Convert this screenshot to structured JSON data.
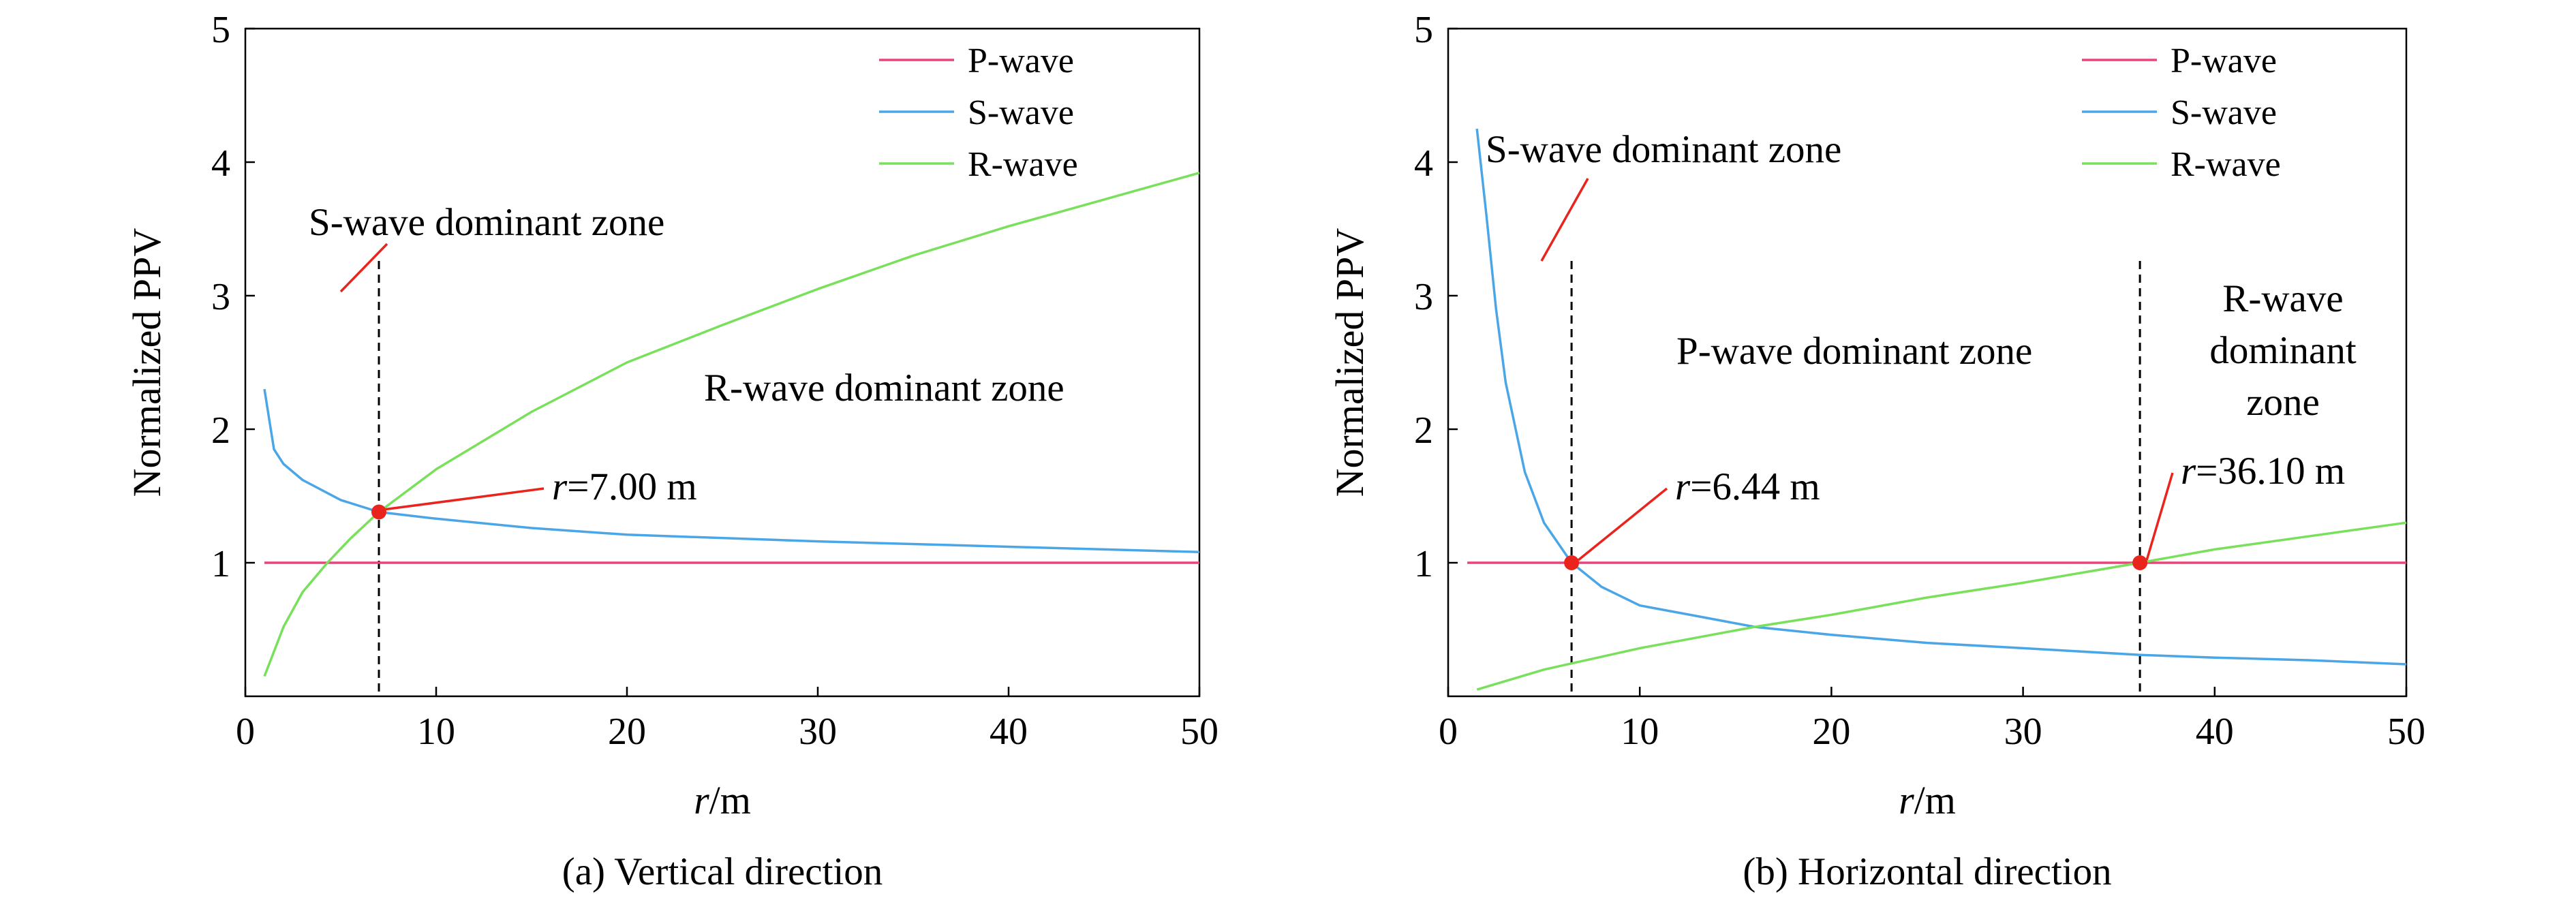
{
  "chart_data": [
    {
      "type": "line",
      "caption": "(a) Vertical direction",
      "xlabel": {
        "italic": "r",
        "rest": "/m"
      },
      "ylabel": "Normalized PPV",
      "xlim": [
        0,
        50
      ],
      "ylim": [
        0,
        5
      ],
      "x_ticks": [
        0,
        10,
        20,
        30,
        40,
        50
      ],
      "y_ticks": [
        1,
        2,
        3,
        4,
        5
      ],
      "legend_position": "top-right",
      "grid": false,
      "colors": {
        "P-wave": "#e8457a",
        "S-wave": "#4aa6e6",
        "R-wave": "#78e05a",
        "marker": "#e8241d",
        "divider": "#000000"
      },
      "series": [
        {
          "name": "P-wave",
          "x": [
            1,
            5,
            10,
            20,
            30,
            40,
            50
          ],
          "y": [
            1,
            1,
            1,
            1,
            1,
            1,
            1
          ]
        },
        {
          "name": "S-wave",
          "x": [
            1,
            1.5,
            2,
            3,
            5,
            7,
            10,
            15,
            20,
            30,
            40,
            50
          ],
          "y": [
            2.3,
            1.85,
            1.74,
            1.62,
            1.47,
            1.38,
            1.33,
            1.26,
            1.21,
            1.16,
            1.12,
            1.08
          ]
        },
        {
          "name": "R-wave",
          "x": [
            1,
            2,
            3,
            4.3,
            5.5,
            7,
            10,
            15,
            20,
            25,
            30,
            35,
            40,
            45,
            50
          ],
          "y": [
            0.15,
            0.52,
            0.78,
            1.0,
            1.18,
            1.38,
            1.7,
            2.13,
            2.5,
            2.78,
            3.05,
            3.3,
            3.52,
            3.72,
            3.92
          ]
        }
      ],
      "intersections": [
        {
          "x": 7.0,
          "y": 1.38,
          "label_italic": "r",
          "label_rest": "=7.00 m"
        }
      ],
      "dividers_x": [
        7.0
      ],
      "zone_labels": [
        "S-wave dominant zone",
        "R-wave dominant zone"
      ]
    },
    {
      "type": "line",
      "caption": "(b) Horizontal direction",
      "xlabel": {
        "italic": "r",
        "rest": "/m"
      },
      "ylabel": "Normalized PPV",
      "xlim": [
        0,
        50
      ],
      "ylim": [
        0,
        5
      ],
      "x_ticks": [
        0,
        10,
        20,
        30,
        40,
        50
      ],
      "y_ticks": [
        1,
        2,
        3,
        4,
        5
      ],
      "legend_position": "top-right",
      "grid": false,
      "colors": {
        "P-wave": "#e8457a",
        "S-wave": "#4aa6e6",
        "R-wave": "#78e05a",
        "marker": "#e8241d",
        "divider": "#000000"
      },
      "series": [
        {
          "name": "P-wave",
          "x": [
            1,
            5,
            10,
            20,
            30,
            40,
            50
          ],
          "y": [
            1,
            1,
            1,
            1,
            1,
            1,
            1
          ]
        },
        {
          "name": "S-wave",
          "x": [
            1.5,
            2,
            2.5,
            3,
            4,
            5,
            6.44,
            8,
            10,
            13,
            16,
            20,
            25,
            30,
            36.1,
            40,
            45,
            50
          ],
          "y": [
            4.25,
            3.6,
            2.9,
            2.35,
            1.68,
            1.3,
            1.0,
            0.82,
            0.68,
            0.6,
            0.52,
            0.46,
            0.4,
            0.36,
            0.31,
            0.29,
            0.27,
            0.24
          ]
        },
        {
          "name": "R-wave",
          "x": [
            1.5,
            5,
            10,
            16,
            20,
            25,
            30,
            36.1,
            40,
            45,
            50
          ],
          "y": [
            0.05,
            0.2,
            0.36,
            0.52,
            0.61,
            0.74,
            0.85,
            1.0,
            1.1,
            1.2,
            1.3
          ]
        }
      ],
      "intersections": [
        {
          "x": 6.44,
          "y": 1.0,
          "label_italic": "r",
          "label_rest": "=6.44 m"
        },
        {
          "x": 36.1,
          "y": 1.0,
          "label_italic": "r",
          "label_rest": "=36.10 m"
        }
      ],
      "dividers_x": [
        6.44,
        36.1
      ],
      "zone_labels": [
        "S-wave dominant zone",
        "P-wave dominant zone",
        [
          "R-wave",
          "dominant",
          "zone"
        ]
      ]
    }
  ]
}
